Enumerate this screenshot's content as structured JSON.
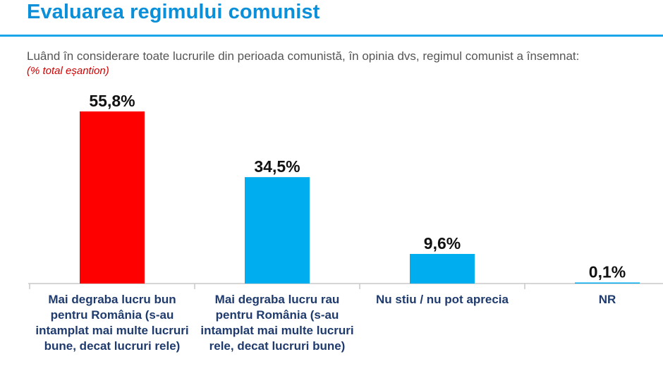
{
  "header": {
    "title": "Evaluarea regimului comunist",
    "question": "Luând în considerare toate lucrurile din perioada comunistă, în opinia dvs, regimul comunist a însemnat:",
    "note": "(% total eșantion)"
  },
  "chart_data": {
    "type": "bar",
    "title": "",
    "xlabel": "",
    "ylabel": "",
    "ylim": [
      0,
      55.8
    ],
    "grid": false,
    "legend": "none",
    "categories": [
      "Mai degraba lucru bun pentru România (s-au intamplat mai multe lucruri bune, decat lucruri rele)",
      "Mai degraba lucru rau pentru România (s-au intamplat mai multe lucruri rele, decat lucruri bune)",
      "Nu stiu / nu pot aprecia",
      "NR"
    ],
    "values": [
      55.8,
      34.5,
      9.6,
      0.1
    ],
    "value_labels": [
      "55,8%",
      "34,5%",
      "9,6%",
      "0,1%"
    ],
    "colors": [
      "#ff0000",
      "#00aeef",
      "#00aeef",
      "#00aeef"
    ]
  }
}
